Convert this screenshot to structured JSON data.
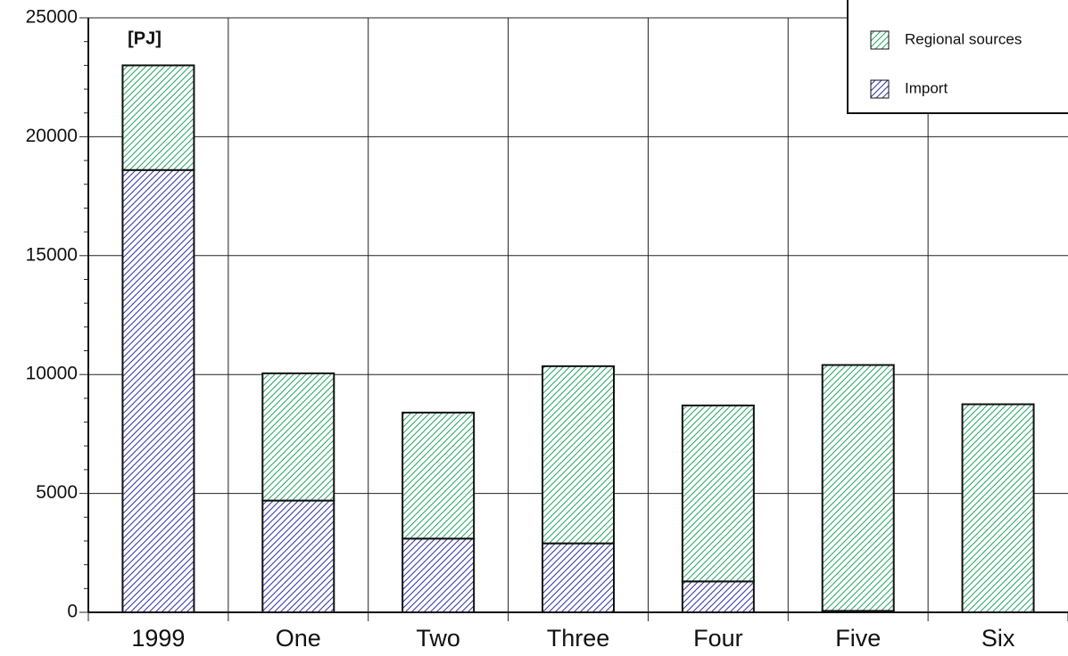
{
  "chart_data": {
    "type": "stacked_bar",
    "unit": "[PJ]",
    "categories": [
      "1999",
      "One",
      "Two",
      "Three",
      "Four",
      "Five",
      "Six"
    ],
    "series": [
      {
        "name": "Import",
        "color": "#3a3aa8",
        "values": [
          18600,
          4700,
          3100,
          2900,
          1300,
          60,
          0
        ]
      },
      {
        "name": "Regional sources",
        "color": "#2fa86a",
        "values": [
          4400,
          5350,
          5300,
          7450,
          7400,
          10340,
          8750
        ]
      }
    ],
    "ylim": [
      0,
      25000
    ],
    "yticks": [
      0,
      5000,
      10000,
      15000,
      20000,
      25000
    ],
    "y_minor_ticks": [
      1000,
      2000,
      3000,
      4000,
      6000,
      7000,
      8000,
      9000,
      11000,
      12000,
      13000,
      14000,
      16000,
      17000,
      18000,
      19000,
      21000,
      22000,
      23000,
      24000
    ],
    "grid": true,
    "legend_position": "top-right"
  }
}
